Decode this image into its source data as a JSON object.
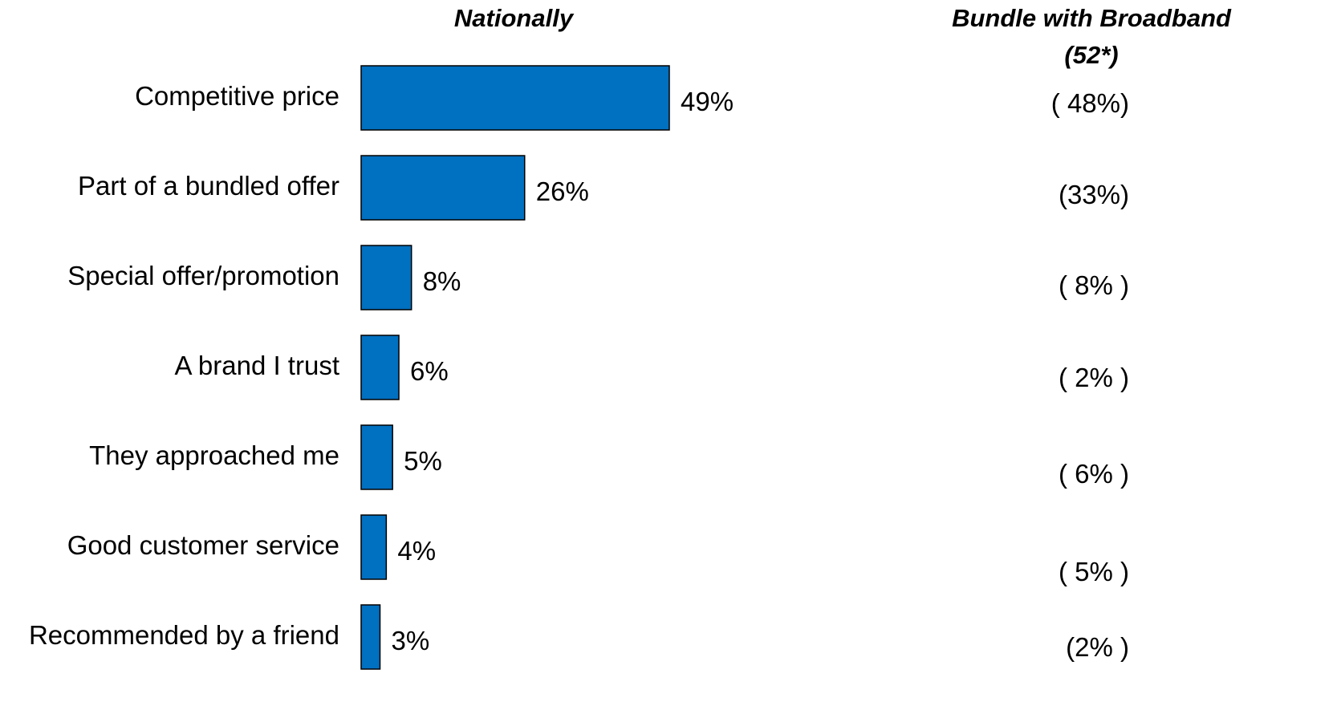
{
  "headers": {
    "nationally": "Nationally",
    "bundle_line1": "Bundle with Broadband",
    "bundle_line2": "(52*)"
  },
  "colors": {
    "bar": "#0070C0"
  },
  "chart_data": {
    "type": "bar",
    "orientation": "horizontal",
    "categories": [
      "Competitive price",
      "Part of a bundled offer",
      "Special offer/promotion",
      "A brand I trust",
      "They approached me",
      "Good customer service",
      "Recommended by a friend"
    ],
    "series": [
      {
        "name": "Nationally",
        "values": [
          49,
          26,
          8,
          6,
          5,
          4,
          3
        ],
        "labels": [
          "49%",
          "26%",
          "8%",
          "6%",
          "5%",
          "4%",
          "3%"
        ]
      }
    ],
    "comparison": {
      "name": "Bundle with Broadband (52*)",
      "values": [
        48,
        33,
        8,
        2,
        6,
        5,
        2
      ],
      "labels": [
        "( 48%)",
        "(33%)",
        "( 8% )",
        "( 2% )",
        "( 6% )",
        "( 5% )",
        "(2% )"
      ]
    },
    "xlim": [
      0,
      49
    ],
    "grid": false,
    "legend": "none"
  }
}
